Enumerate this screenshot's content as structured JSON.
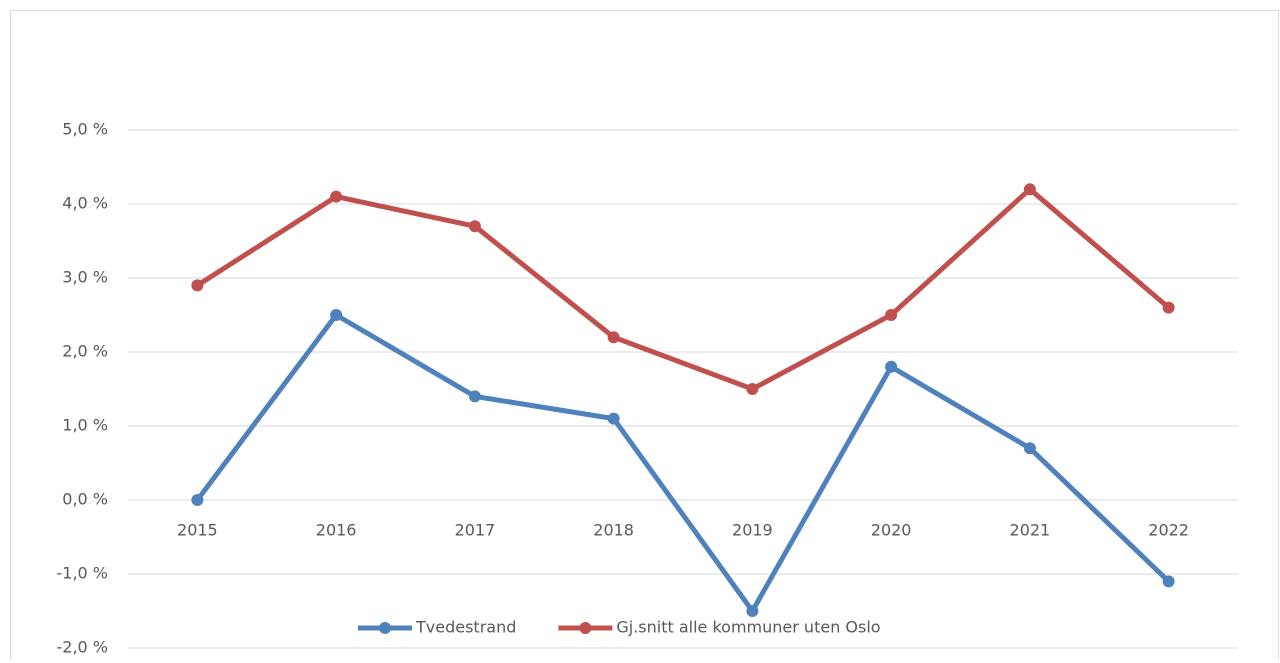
{
  "chart_data": {
    "type": "line",
    "categories": [
      "2015",
      "2016",
      "2017",
      "2018",
      "2019",
      "2020",
      "2021",
      "2022"
    ],
    "series": [
      {
        "name": "Tvedestrand",
        "color": "#4f81bd",
        "values": [
          0,
          2.5,
          1.4,
          1.1,
          -1.5,
          1.8,
          0.7,
          -1.1
        ]
      },
      {
        "name": "Gj.snitt alle kommuner uten Oslo",
        "color": "#c0504d",
        "values": [
          2.9,
          4.1,
          3.7,
          2.2,
          1.5,
          2.5,
          4.2,
          2.6
        ]
      }
    ],
    "ylim": [
      -2,
      5
    ],
    "yticks": [
      {
        "value": -2,
        "label": "-2,0 %"
      },
      {
        "value": -1,
        "label": "-1,0 %"
      },
      {
        "value": 0,
        "label": "0,0 %"
      },
      {
        "value": 1,
        "label": "1,0 %"
      },
      {
        "value": 2,
        "label": "2,0 %"
      },
      {
        "value": 3,
        "label": "3,0 %"
      },
      {
        "value": 4,
        "label": "4,0 %"
      },
      {
        "value": 5,
        "label": "5,0 %"
      }
    ],
    "grid": true,
    "legend": "bottom"
  }
}
